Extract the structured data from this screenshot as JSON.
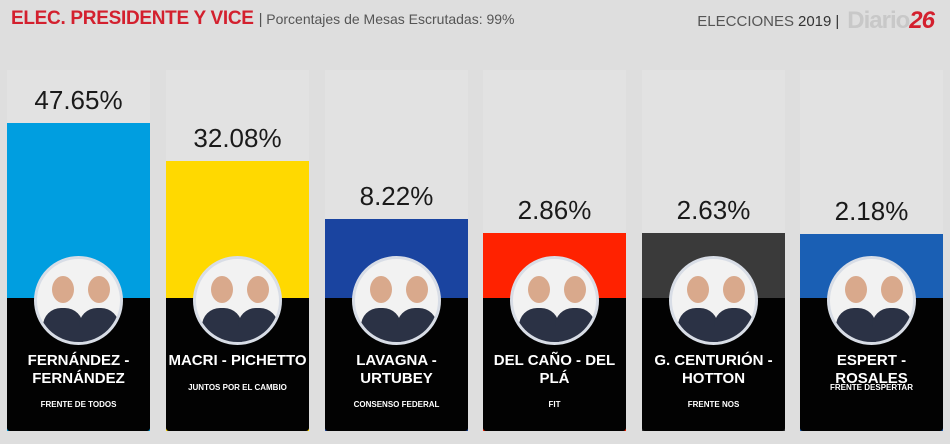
{
  "header": {
    "title": "ELEC. PRESIDENTE Y VICE",
    "separator": "|",
    "subtitle": "Porcentajes de Mesas Escrutadas: 99%",
    "brand_label": "ELECCIONES",
    "brand_year": "2019",
    "brand_separator": "|",
    "logo_text": "Diario",
    "logo_number": "26"
  },
  "chart_data": {
    "type": "bar",
    "title": "ELEC. PRESIDENTE Y VICE",
    "subtitle": "Porcentajes de Mesas Escrutadas: 99%",
    "categories": [
      "FERNÁNDEZ - FERNÁNDEZ",
      "MACRI - PICHETTO",
      "LAVAGNA - URTUBEY",
      "DEL CAÑO - DEL PLÁ",
      "G. CENTURIÓN - HOTTON",
      "ESPERT - ROSALES"
    ],
    "values": [
      47.65,
      32.08,
      8.22,
      2.86,
      2.63,
      2.18
    ],
    "labels": [
      "47.65%",
      "32.08%",
      "8.22%",
      "2.86%",
      "2.63%",
      "2.18%"
    ],
    "parties": [
      "FRENTE DE TODOS",
      "JUNTOS POR EL CAMBIO",
      "CONSENSO FEDERAL",
      "FIT",
      "FRENTE NOS",
      "FRENTE DESPERTAR"
    ],
    "colors": [
      "#009ee0",
      "#ffd900",
      "#1a44a0",
      "#ff2200",
      "#3a3a3a",
      "#1a5fb4"
    ],
    "xlabel": "",
    "ylabel": "",
    "grid": false,
    "legend": "none"
  },
  "candidates": [
    {
      "pct": "47.65%",
      "line1": "FERNÁNDEZ -",
      "line2": "FERNÁNDEZ",
      "party": "FRENTE DE TODOS",
      "color": "#009ee0"
    },
    {
      "pct": "32.08%",
      "line1": "MACRI - PICHETTO",
      "line2": "",
      "party": "JUNTOS POR EL CAMBIO",
      "color": "#ffd900"
    },
    {
      "pct": "8.22%",
      "line1": "LAVAGNA -",
      "line2": "URTUBEY",
      "party": "CONSENSO FEDERAL",
      "color": "#1a44a0"
    },
    {
      "pct": "2.86%",
      "line1": "DEL CAÑO - DEL",
      "line2": "PLÁ",
      "party": "FIT",
      "color": "#ff2200"
    },
    {
      "pct": "2.63%",
      "line1": "G. CENTURIÓN -",
      "line2": "HOTTON",
      "party": "FRENTE NOS",
      "color": "#3a3a3a"
    },
    {
      "pct": "2.18%",
      "line1": "ESPERT - ROSALES",
      "line2": "",
      "party": "FRENTE DESPERTAR",
      "color": "#1a5fb4"
    }
  ]
}
